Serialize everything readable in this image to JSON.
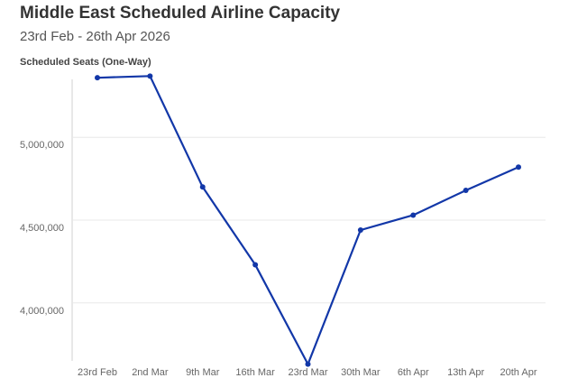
{
  "header": {
    "title": "Middle East Scheduled Airline Capacity",
    "subtitle": "23rd Feb - 26th Apr 2026"
  },
  "colors": {
    "series": "#1237a8",
    "grid": "#e8e8e8",
    "axis": "#d0d0d0"
  },
  "chart_data": {
    "type": "line",
    "title": "Middle East Scheduled Airline Capacity",
    "subtitle": "23rd Feb - 26th Apr 2026",
    "xlabel": "",
    "ylabel": "Scheduled Seats (One-Way)",
    "ylim": [
      3650000,
      5350000
    ],
    "y_ticks": [
      4000000,
      4500000,
      5000000
    ],
    "y_tick_labels": [
      "4,000,000",
      "4,500,000",
      "5,000,000"
    ],
    "grid": true,
    "categories": [
      "23rd Feb",
      "2nd Mar",
      "9th Mar",
      "16th Mar",
      "23rd Mar",
      "30th Mar",
      "6th Apr",
      "13th Apr",
      "20th Apr"
    ],
    "series": [
      {
        "name": "Scheduled Seats (One-Way)",
        "values": [
          5360000,
          5370000,
          4700000,
          4230000,
          3630000,
          4440000,
          4530000,
          4680000,
          4820000
        ]
      }
    ]
  }
}
